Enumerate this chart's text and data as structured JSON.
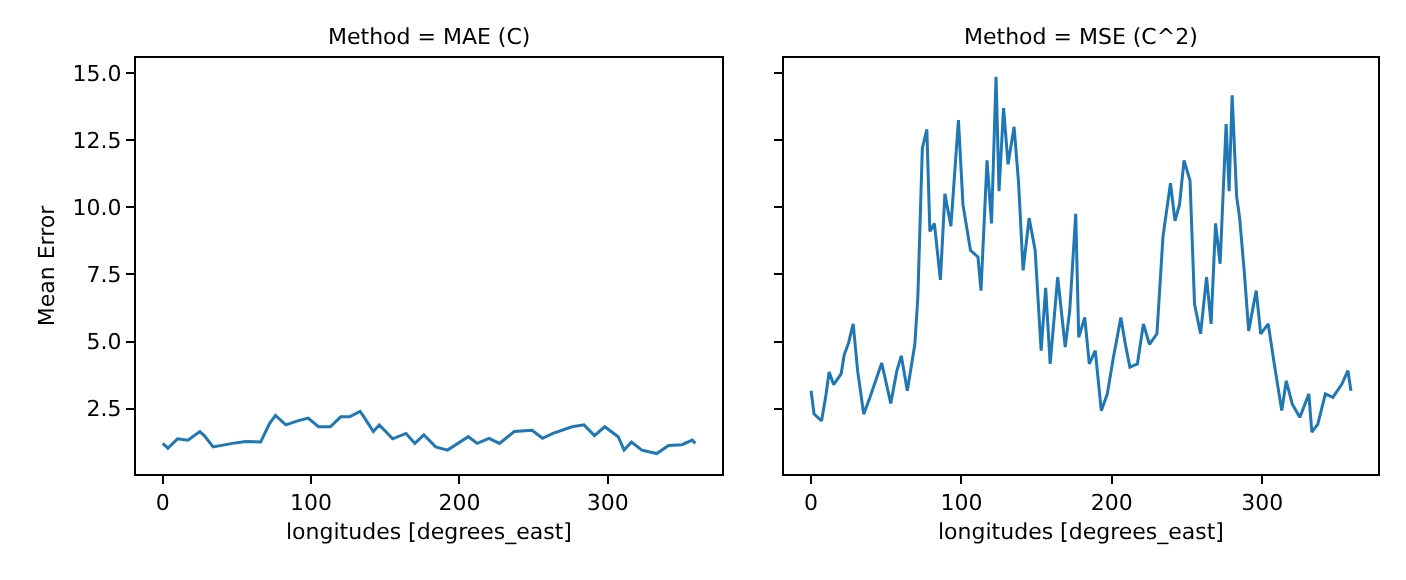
{
  "chart_data": [
    {
      "type": "line",
      "title": "Method = MAE (C)",
      "xlabel": "longitudes [degrees_east]",
      "ylabel": "Mean Error",
      "x": [
        0,
        3.5,
        10,
        17,
        25,
        28,
        34,
        47,
        56,
        66,
        72,
        76,
        83,
        91,
        98,
        105,
        113,
        120,
        126,
        133,
        135,
        142,
        146,
        155,
        164,
        170,
        176,
        184,
        192,
        206,
        212,
        220,
        227,
        237,
        249,
        256,
        263,
        276,
        284,
        291,
        298,
        307,
        311,
        316,
        323,
        333,
        341,
        350,
        357,
        359
      ],
      "series": [
        {
          "color": "#1f77b4",
          "values": [
            1.21,
            1.03,
            1.38,
            1.33,
            1.65,
            1.5,
            1.08,
            1.21,
            1.28,
            1.26,
            1.95,
            2.25,
            1.9,
            2.05,
            2.15,
            1.83,
            1.83,
            2.2,
            2.2,
            2.4,
            2.25,
            1.65,
            1.9,
            1.38,
            1.58,
            1.21,
            1.53,
            1.08,
            0.96,
            1.46,
            1.21,
            1.4,
            1.21,
            1.65,
            1.7,
            1.4,
            1.58,
            1.83,
            1.9,
            1.5,
            1.83,
            1.46,
            0.96,
            1.26,
            0.96,
            0.83,
            1.13,
            1.16,
            1.33,
            1.21
          ]
        }
      ],
      "xlim": [
        -18,
        377
      ],
      "xticks": [
        0,
        100,
        200,
        300
      ],
      "ylim": [
        0.07,
        15.56
      ],
      "yticks": [
        {
          "value": 2.5,
          "label": "2.5"
        },
        {
          "value": 5,
          "label": "5.0"
        },
        {
          "value": 7.5,
          "label": "7.5"
        },
        {
          "value": 10,
          "label": "10.0"
        },
        {
          "value": 12.5,
          "label": "12.5"
        },
        {
          "value": 15,
          "label": "15.0"
        }
      ]
    },
    {
      "type": "line",
      "title": "Method = MSE (C^2)",
      "xlabel": "longitudes [degrees_east]",
      "x": [
        0,
        2,
        7,
        10,
        12,
        15,
        20,
        22,
        25,
        28,
        31,
        35,
        39,
        47,
        53,
        57,
        60,
        64,
        69,
        71,
        74,
        77,
        79,
        82,
        86,
        89,
        93,
        98,
        101,
        106,
        111,
        113,
        117,
        120,
        123,
        125,
        128,
        131,
        135,
        138,
        141,
        145,
        149,
        153,
        156,
        159,
        164,
        169,
        172,
        176,
        178,
        182,
        185,
        189,
        193,
        197,
        201,
        206,
        209,
        212,
        217,
        221,
        225,
        230,
        234,
        239,
        242,
        245,
        248,
        252,
        255,
        259,
        263,
        266,
        269,
        272,
        276,
        278,
        280,
        283,
        285,
        288,
        291,
        296,
        299,
        304,
        308,
        313,
        316,
        320,
        325,
        331,
        333,
        337,
        342,
        347,
        353,
        357,
        359
      ],
      "series": [
        {
          "color": "#1f77b4",
          "values": [
            3.17,
            2.3,
            2.05,
            3.05,
            3.87,
            3.4,
            3.8,
            4.5,
            4.96,
            5.66,
            3.9,
            2.3,
            2.9,
            4.2,
            2.7,
            3.9,
            4.47,
            3.17,
            4.9,
            6.65,
            12.2,
            12.9,
            9.1,
            9.4,
            7.3,
            10.5,
            9.3,
            13.25,
            10.1,
            8.4,
            8.15,
            6.9,
            11.75,
            9.4,
            14.86,
            10.6,
            13.7,
            11.6,
            13.0,
            10.9,
            7.65,
            9.6,
            8.4,
            4.66,
            7.0,
            4.17,
            7.4,
            4.8,
            6.15,
            9.76,
            5.16,
            5.9,
            4.17,
            4.66,
            2.43,
            3.05,
            4.4,
            5.9,
            4.9,
            4.05,
            4.17,
            5.66,
            4.9,
            5.29,
            8.9,
            10.9,
            9.5,
            10.1,
            11.75,
            11.0,
            6.4,
            5.29,
            7.4,
            5.66,
            9.4,
            7.9,
            13.1,
            10.6,
            14.17,
            10.4,
            9.6,
            7.65,
            5.4,
            6.9,
            5.29,
            5.66,
            4.17,
            2.43,
            3.54,
            2.67,
            2.18,
            3.05,
            1.63,
            1.93,
            3.05,
            2.92,
            3.42,
            3.92,
            3.17
          ]
        }
      ],
      "xlim": [
        -18,
        377
      ],
      "xticks": [
        0,
        100,
        200,
        300
      ],
      "ylim": [
        0.07,
        15.56
      ],
      "yticks": [
        {
          "value": 2.5,
          "label": null
        },
        {
          "value": 5,
          "label": null
        },
        {
          "value": 7.5,
          "label": null
        },
        {
          "value": 10,
          "label": null
        },
        {
          "value": 12.5,
          "label": null
        },
        {
          "value": 15,
          "label": null
        }
      ],
      "tick_labels": "x"
    }
  ]
}
